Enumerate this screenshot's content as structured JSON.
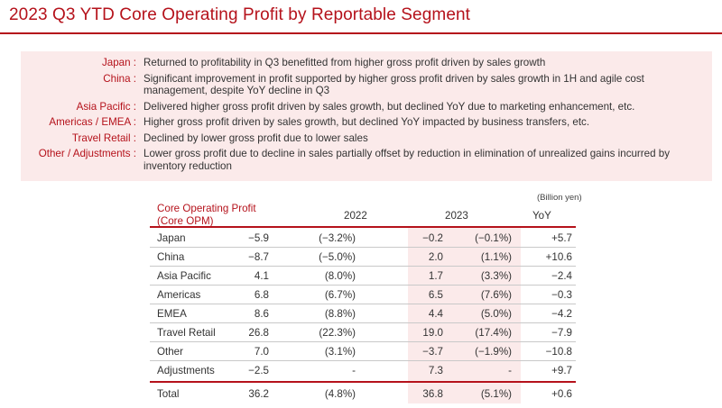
{
  "title": "2023 Q3 YTD Core Operating Profit by Reportable Segment",
  "notes": [
    {
      "label": "Japan :",
      "text": "Returned to profitability in Q3 benefitted from higher gross profit driven by sales growth"
    },
    {
      "label": "China :",
      "text": "Significant improvement in profit supported by higher gross profit driven by sales growth in 1H and agile cost management, despite YoY decline in Q3"
    },
    {
      "label": "Asia Pacific :",
      "text": "Delivered higher gross profit driven by sales growth, but declined YoY due to marketing enhancement, etc."
    },
    {
      "label": "Americas / EMEA :",
      "text": "Higher gross profit driven by sales growth, but declined YoY impacted by business transfers, etc."
    },
    {
      "label": "Travel Retail :",
      "text": "Declined by lower gross profit due to lower sales"
    },
    {
      "label": "Other / Adjustments :",
      "text": "Lower gross profit due to decline in sales partially offset by reduction in elimination of unrealized gains incurred by inventory reduction"
    }
  ],
  "table": {
    "unit": "(Billion yen)",
    "header_label_1": "Core Operating Profit",
    "header_label_2": "(Core OPM)",
    "year_2022": "2022",
    "year_2023": "2023",
    "yoy": "YoY",
    "rows": [
      {
        "name": "Japan",
        "v2022": "−5.9",
        "m2022": "(−3.2%)",
        "v2023": "−0.2",
        "m2023": "(−0.1%)",
        "yoy": "+5.7"
      },
      {
        "name": "China",
        "v2022": "−8.7",
        "m2022": "(−5.0%)",
        "v2023": "2.0",
        "m2023": "(1.1%)",
        "yoy": "+10.6"
      },
      {
        "name": "Asia Pacific",
        "v2022": "4.1",
        "m2022": "(8.0%)",
        "v2023": "1.7",
        "m2023": "(3.3%)",
        "yoy": "−2.4"
      },
      {
        "name": "Americas",
        "v2022": "6.8",
        "m2022": "(6.7%)",
        "v2023": "6.5",
        "m2023": "(7.6%)",
        "yoy": "−0.3"
      },
      {
        "name": "EMEA",
        "v2022": "8.6",
        "m2022": "(8.8%)",
        "v2023": "4.4",
        "m2023": "(5.0%)",
        "yoy": "−4.2"
      },
      {
        "name": "Travel Retail",
        "v2022": "26.8",
        "m2022": "(22.3%)",
        "v2023": "19.0",
        "m2023": "(17.4%)",
        "yoy": "−7.9"
      },
      {
        "name": "Other",
        "v2022": "7.0",
        "m2022": "(3.1%)",
        "v2023": "−3.7",
        "m2023": "(−1.9%)",
        "yoy": "−10.8"
      },
      {
        "name": "Adjustments",
        "v2022": "−2.5",
        "m2022": "-",
        "v2023": "7.3",
        "m2023": "-",
        "yoy": "+9.7"
      }
    ],
    "total": {
      "name": "Total",
      "v2022": "36.2",
      "m2022": "(4.8%)",
      "v2023": "36.8",
      "m2023": "(5.1%)",
      "yoy": "+0.6"
    }
  }
}
